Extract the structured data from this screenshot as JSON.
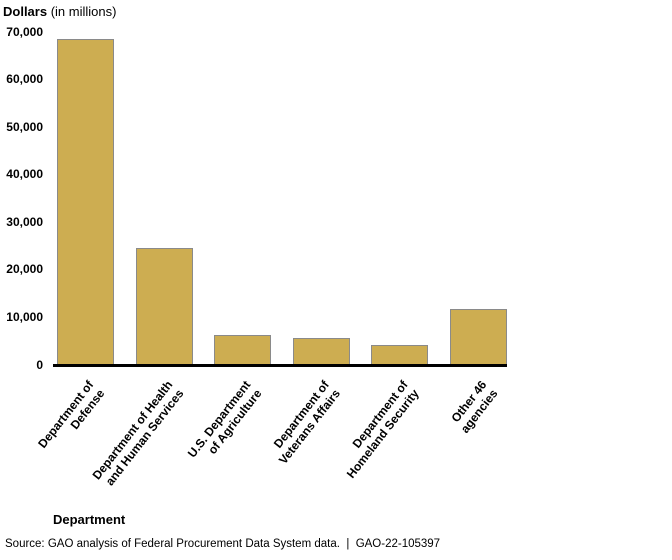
{
  "title": {
    "bold": "Dollars",
    "suffix": " (in millions)"
  },
  "x_axis_title": "Department",
  "source_note": "Source: GAO analysis of Federal Procurement Data System data.  |  GAO-22-105397",
  "colors": {
    "bar_fill": "#cdad51",
    "bar_border": "#8a8a8a",
    "axis_line": "#000000",
    "text": "#000000",
    "background": "#ffffff"
  },
  "chart_data": {
    "type": "bar",
    "title": "Dollars (in millions)",
    "xlabel": "Department",
    "ylabel": "Dollars (in millions)",
    "categories": [
      "Department of Defense",
      "Department of Health and Human Services",
      "U.S. Department of Agriculture",
      "Department of Veterans Affairs",
      "Department of Homeland Security",
      "Other 46 agencies"
    ],
    "category_lines": [
      [
        "Department of",
        "Defense"
      ],
      [
        "Department of Health",
        "and Human Services"
      ],
      [
        "U.S. Department",
        "of Agriculture"
      ],
      [
        "Department of",
        "Veterans Affairs"
      ],
      [
        "Department of",
        "Homeland Security"
      ],
      [
        "Other 46",
        "agencies"
      ]
    ],
    "values": [
      68500,
      24600,
      6400,
      5700,
      4200,
      11800
    ],
    "ylim": [
      0,
      70000
    ],
    "yticks": [
      0,
      10000,
      20000,
      30000,
      40000,
      50000,
      60000,
      70000
    ],
    "ytick_labels": [
      "0",
      "10,000",
      "20,000",
      "30,000",
      "40,000",
      "50,000",
      "60,000",
      "70,000"
    ],
    "grid": false,
    "legend_position": "none",
    "bar_color": "#cdad51",
    "source": "Source: GAO analysis of Federal Procurement Data System data.  |  GAO-22-105397"
  }
}
